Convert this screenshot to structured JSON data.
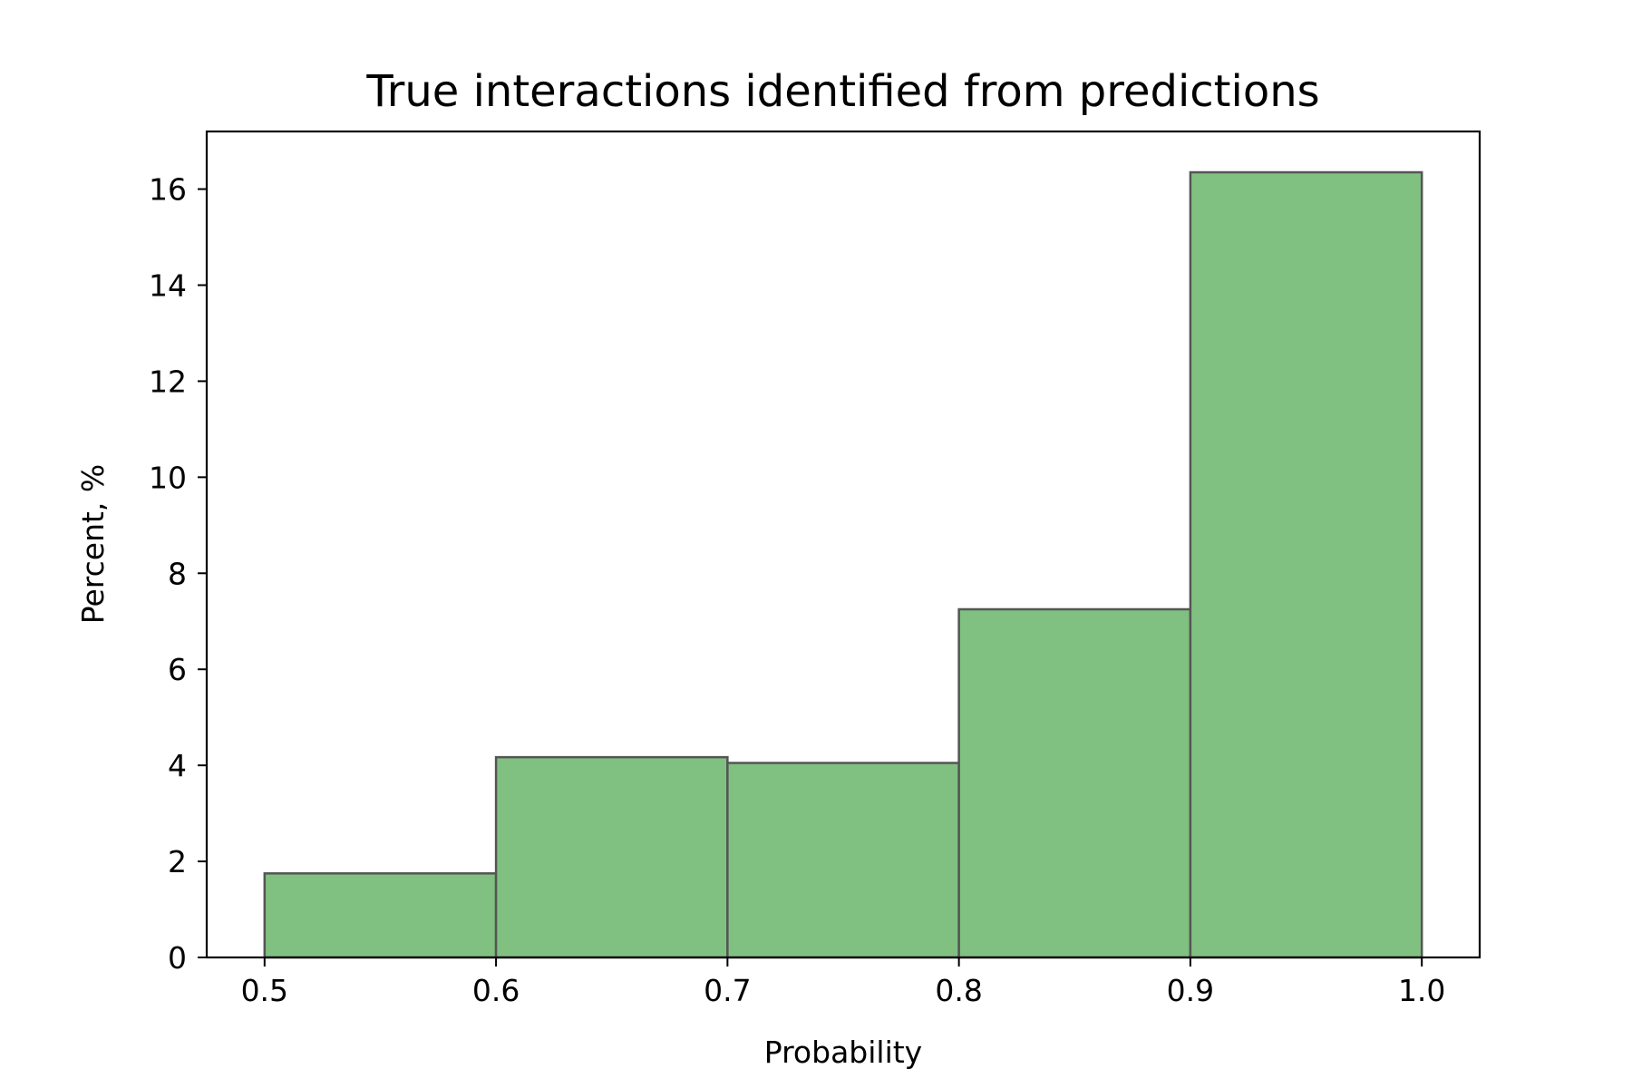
{
  "chart_data": {
    "type": "bar",
    "title": "True interactions identified from predictions",
    "xlabel": "Probability",
    "ylabel": "Percent, %",
    "bins": [
      {
        "x0": 0.5,
        "x1": 0.6,
        "value": 1.75
      },
      {
        "x0": 0.6,
        "x1": 0.7,
        "value": 4.17
      },
      {
        "x0": 0.7,
        "x1": 0.8,
        "value": 4.05
      },
      {
        "x0": 0.8,
        "x1": 0.9,
        "value": 7.25
      },
      {
        "x0": 0.9,
        "x1": 1.0,
        "value": 16.35
      }
    ],
    "xlim": [
      0.475,
      1.025
    ],
    "ylim": [
      0,
      17.2
    ],
    "xticks": [
      {
        "value": 0.5,
        "label": "0.5"
      },
      {
        "value": 0.6,
        "label": "0.6"
      },
      {
        "value": 0.7,
        "label": "0.7"
      },
      {
        "value": 0.8,
        "label": "0.8"
      },
      {
        "value": 0.9,
        "label": "0.9"
      },
      {
        "value": 1.0,
        "label": "1.0"
      }
    ],
    "yticks": [
      {
        "value": 0,
        "label": "0"
      },
      {
        "value": 2,
        "label": "2"
      },
      {
        "value": 4,
        "label": "4"
      },
      {
        "value": 6,
        "label": "6"
      },
      {
        "value": 8,
        "label": "8"
      },
      {
        "value": 10,
        "label": "10"
      },
      {
        "value": 12,
        "label": "12"
      },
      {
        "value": 14,
        "label": "14"
      },
      {
        "value": 16,
        "label": "16"
      }
    ],
    "grid": false,
    "colors": {
      "bar_fill": "#80c080",
      "bar_edge": "#555555"
    }
  }
}
